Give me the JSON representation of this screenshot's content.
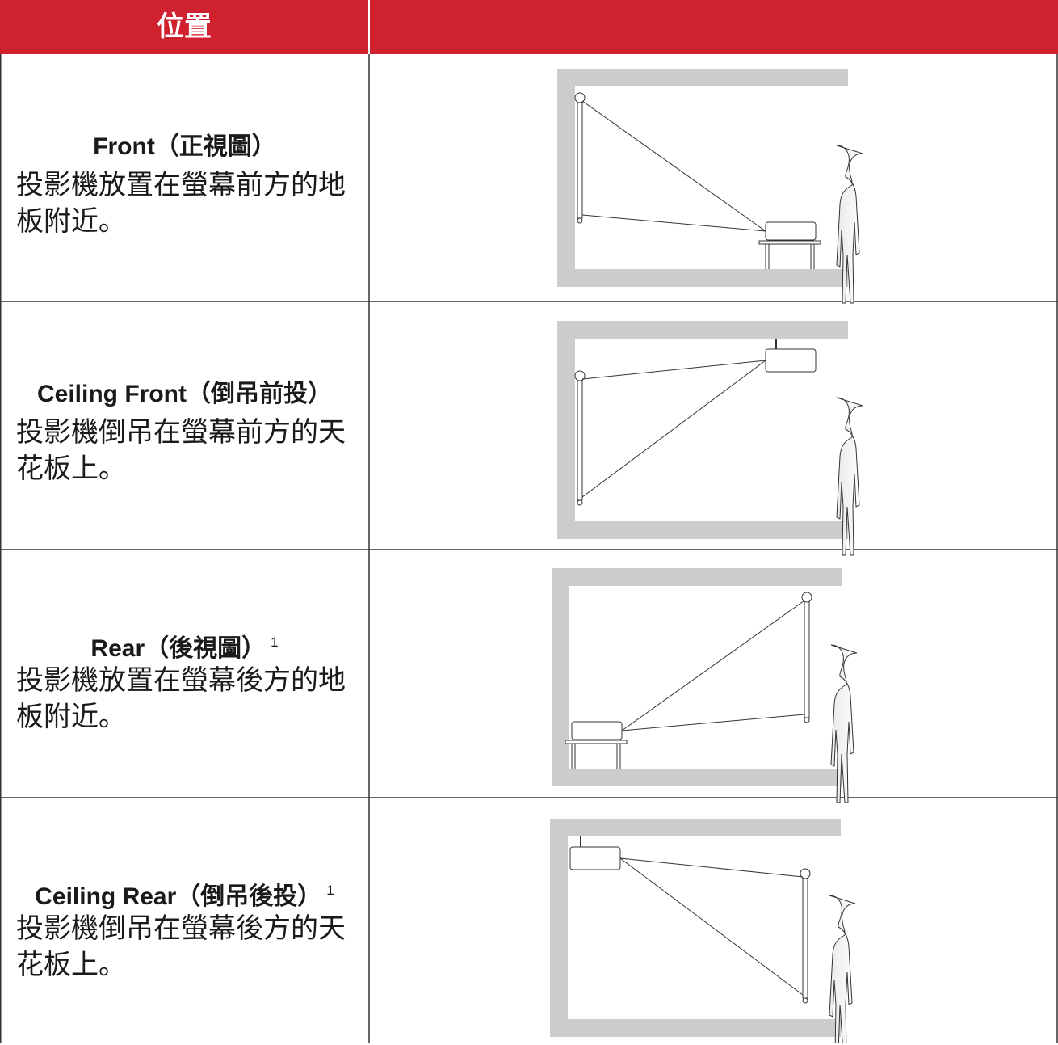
{
  "header": {
    "title": "位置"
  },
  "rows": [
    {
      "title": "Front（正視圖）",
      "description": "投影機放置在螢幕前方的地板附近。"
    },
    {
      "title": "Ceiling Front（倒吊前投）",
      "description": "投影機倒吊在螢幕前方的天花板上。"
    },
    {
      "title": "Rear（後視圖）",
      "superscript": "1",
      "description": "投影機放置在螢幕後方的地板附近。"
    },
    {
      "title": "Ceiling Rear（倒吊後投）",
      "superscript": "1",
      "description": "投影機倒吊在螢幕後方的天花板上。"
    }
  ]
}
